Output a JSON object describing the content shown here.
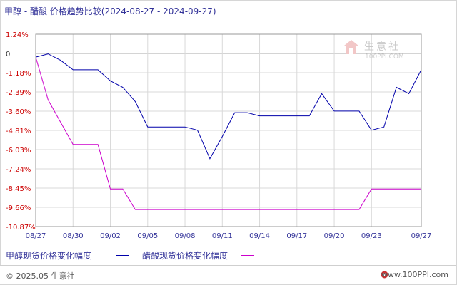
{
  "chart_data": {
    "type": "line",
    "title": "甲醇 - 醋酸 价格趋势比较(2024-08-27 - 2024-09-27)",
    "categories": [
      "08/27",
      "08/30",
      "09/02",
      "09/05",
      "09/08",
      "09/11",
      "09/14",
      "09/17",
      "09/20",
      "09/23",
      "09/27"
    ],
    "x": [
      "08/27",
      "08/28",
      "08/29",
      "08/30",
      "08/31",
      "09/01",
      "09/02",
      "09/03",
      "09/04",
      "09/05",
      "09/06",
      "09/07",
      "09/08",
      "09/09",
      "09/10",
      "09/11",
      "09/12",
      "09/13",
      "09/14",
      "09/15",
      "09/16",
      "09/17",
      "09/18",
      "09/19",
      "09/20",
      "09/21",
      "09/22",
      "09/23",
      "09/24",
      "09/25",
      "09/26",
      "09/27"
    ],
    "yticks": [
      "1.24%",
      "0",
      "-1.18%",
      "-2.39%",
      "-3.60%",
      "-4.81%",
      "-6.03%",
      "-7.24%",
      "-8.45%",
      "-9.66%",
      "-10.87%"
    ],
    "ylim": [
      -10.87,
      1.24
    ],
    "grid": true,
    "legend_position": "bottom",
    "series": [
      {
        "name": "甲醇现货价格变化幅度",
        "color": "#0000aa",
        "values": [
          -0.2,
          0.0,
          -0.4,
          -1.0,
          -1.0,
          -1.0,
          -1.7,
          -2.1,
          -3.0,
          -4.6,
          -4.6,
          -4.6,
          -4.6,
          -4.8,
          -6.6,
          -5.2,
          -3.7,
          -3.7,
          -3.9,
          -3.9,
          -3.9,
          -3.9,
          -3.9,
          -2.5,
          -3.6,
          -3.6,
          -3.6,
          -4.8,
          -4.6,
          -2.1,
          -2.5,
          -1.0
        ]
      },
      {
        "name": "醋酸现货价格变化幅度",
        "color": "#cc00cc",
        "values": [
          -0.2,
          -2.9,
          -4.3,
          -5.7,
          -5.7,
          -5.7,
          -8.5,
          -8.5,
          -9.8,
          -9.8,
          -9.8,
          -9.8,
          -9.8,
          -9.8,
          -9.8,
          -9.8,
          -9.8,
          -9.8,
          -9.8,
          -9.8,
          -9.8,
          -9.8,
          -9.8,
          -9.8,
          -9.8,
          -9.8,
          -9.8,
          -8.5,
          -8.5,
          -8.5,
          -8.5,
          -8.5
        ]
      }
    ]
  },
  "watermark": {
    "name": "生意社",
    "url": "100PPI.COM"
  },
  "footer": {
    "copyright": "© 2025.05 生意社",
    "site": "www.100PPI.com"
  },
  "colors": {
    "axis_text_y": "#cc0000",
    "axis_text_x": "#333399",
    "grid": "#d9d9d9"
  }
}
